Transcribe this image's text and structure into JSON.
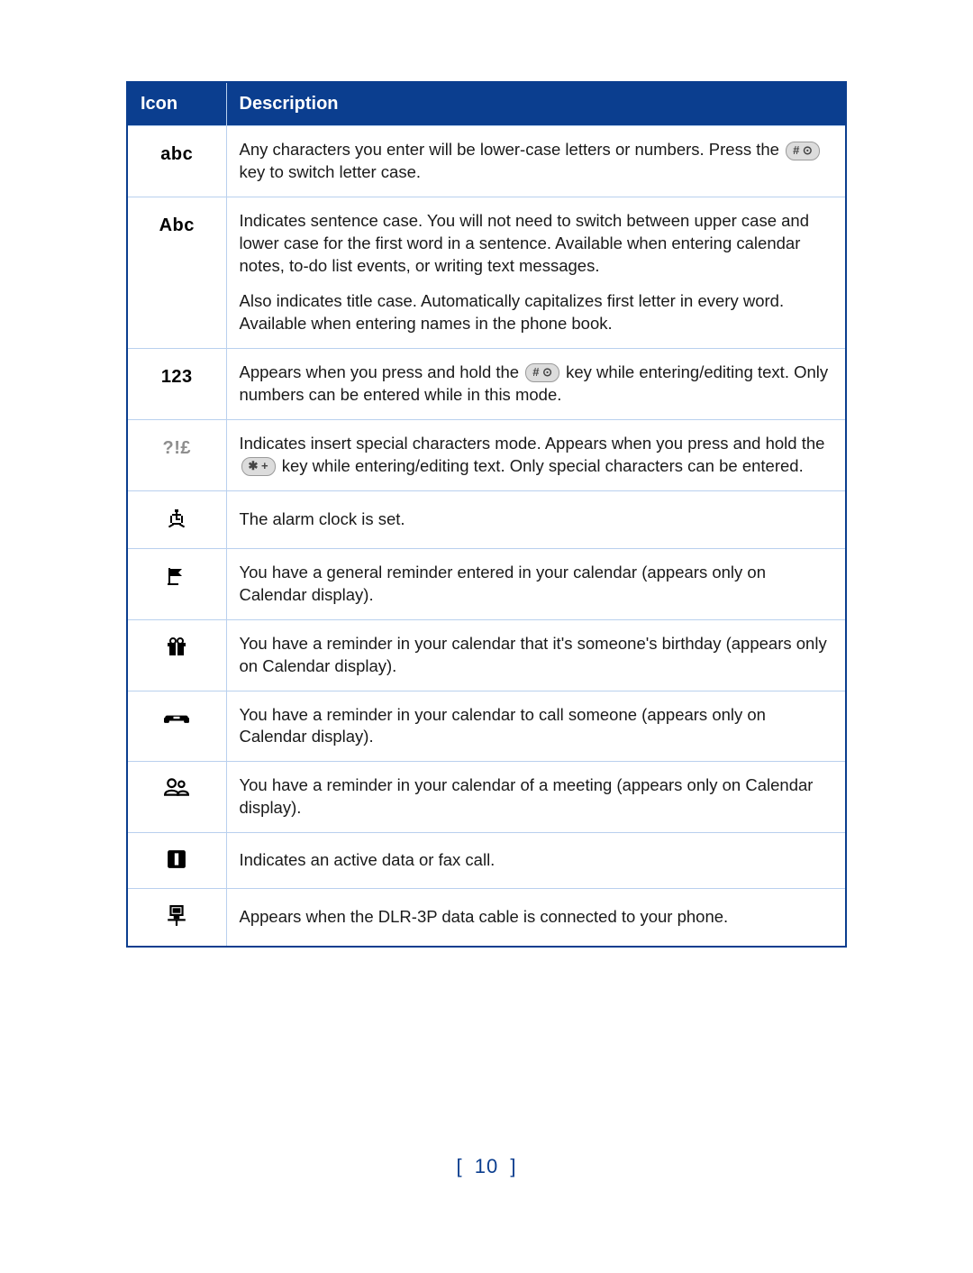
{
  "table": {
    "headers": {
      "icon": "Icon",
      "description": "Description"
    },
    "keyLabels": {
      "hash": "# ⊙",
      "star": "✱ +"
    },
    "rows": [
      {
        "iconKind": "text",
        "iconText": "abc",
        "desc": [
          {
            "pre": "Any characters you enter will be lower-case letters or numbers. Press the ",
            "key": "hash",
            "post": " key to switch letter case."
          }
        ]
      },
      {
        "iconKind": "text",
        "iconText": "Abc",
        "desc": [
          {
            "pre": "Indicates sentence case. You will not need to switch between upper case and lower case for the first word in a sentence. Available when entering calendar notes, to-do list events, or writing text messages."
          },
          {
            "pre": "Also indicates title case. Automatically capitalizes first letter in every word. Available when entering names in the phone book."
          }
        ]
      },
      {
        "iconKind": "text",
        "iconText": "123",
        "desc": [
          {
            "pre": "Appears when you press and hold the ",
            "key": "hash",
            "post": " key while entering/editing text. Only numbers can be entered while in this mode."
          }
        ]
      },
      {
        "iconKind": "text-gray",
        "iconText": "?!£",
        "desc": [
          {
            "pre": "Indicates insert special characters mode. Appears when you press and hold the ",
            "key": "star",
            "post": " key while entering/editing text. Only special characters can be entered."
          }
        ]
      },
      {
        "iconKind": "svg-alarm",
        "desc": [
          {
            "pre": "The alarm clock is set."
          }
        ]
      },
      {
        "iconKind": "svg-flag",
        "desc": [
          {
            "pre": "You have a general reminder entered in your calendar (appears only on Calendar display)."
          }
        ]
      },
      {
        "iconKind": "svg-gift",
        "desc": [
          {
            "pre": "You have a reminder in your calendar that it's someone's birthday (appears only on Calendar display)."
          }
        ]
      },
      {
        "iconKind": "svg-phone",
        "desc": [
          {
            "pre": "You have a reminder in your calendar to call someone (appears only on Calendar display)."
          }
        ]
      },
      {
        "iconKind": "svg-people",
        "desc": [
          {
            "pre": "You have a reminder in your calendar of a meeting (appears only on Calendar display)."
          }
        ]
      },
      {
        "iconKind": "svg-data",
        "desc": [
          {
            "pre": "Indicates an active data or fax call."
          }
        ]
      },
      {
        "iconKind": "svg-cable",
        "desc": [
          {
            "pre": "Appears when the DLR-3P data cable is connected to your phone."
          }
        ]
      }
    ]
  },
  "pageNumber": "10"
}
